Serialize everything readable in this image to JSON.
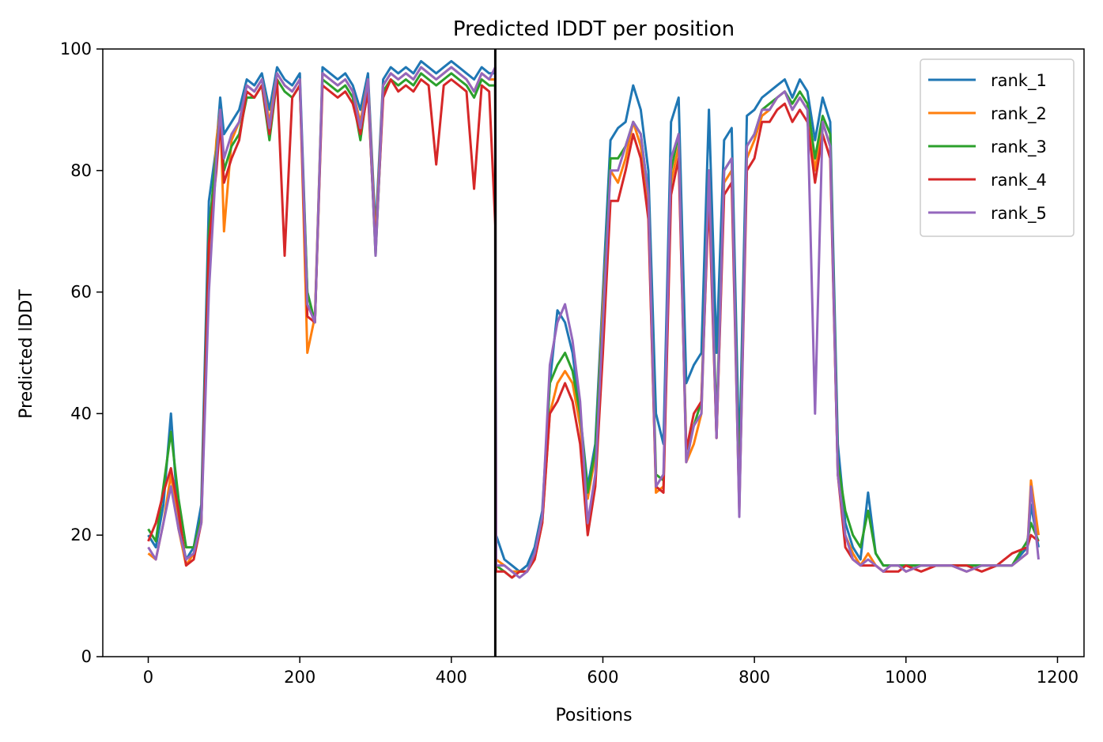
{
  "chart_data": {
    "type": "line",
    "title": "Predicted lDDT per position",
    "xlabel": "Positions",
    "ylabel": "Predicted lDDT",
    "xlim": [
      -60,
      1235
    ],
    "ylim": [
      0,
      100
    ],
    "xticks": [
      0,
      200,
      400,
      600,
      800,
      1000,
      1200
    ],
    "yticks": [
      0,
      20,
      40,
      60,
      80,
      100
    ],
    "grid": false,
    "legend_position": "top-right",
    "chain_break": 458,
    "chain_break_color": "#000000",
    "series": [
      {
        "name": "rank_1",
        "color": "#1f77b4",
        "x": [
          0,
          10,
          20,
          30,
          40,
          50,
          60,
          70,
          80,
          90,
          95,
          100,
          110,
          120,
          130,
          140,
          150,
          160,
          170,
          180,
          190,
          200,
          210,
          220,
          230,
          240,
          250,
          260,
          270,
          280,
          290,
          300,
          310,
          320,
          330,
          340,
          350,
          360,
          370,
          380,
          390,
          400,
          410,
          420,
          430,
          440,
          450,
          458,
          459,
          470,
          480,
          490,
          500,
          510,
          520,
          530,
          540,
          550,
          560,
          570,
          580,
          590,
          600,
          610,
          620,
          630,
          640,
          650,
          660,
          670,
          680,
          690,
          700,
          710,
          720,
          730,
          740,
          750,
          760,
          770,
          780,
          790,
          800,
          810,
          820,
          830,
          840,
          850,
          860,
          870,
          880,
          890,
          900,
          910,
          920,
          930,
          940,
          950,
          960,
          970,
          980,
          990,
          1000,
          1020,
          1040,
          1060,
          1080,
          1100,
          1120,
          1140,
          1160,
          1165,
          1175
        ],
        "y": [
          20,
          18,
          25,
          40,
          22,
          16,
          18,
          25,
          75,
          84,
          92,
          86,
          88,
          90,
          95,
          94,
          96,
          90,
          97,
          95,
          94,
          96,
          60,
          55,
          97,
          96,
          95,
          96,
          94,
          90,
          96,
          70,
          95,
          97,
          96,
          97,
          96,
          98,
          97,
          96,
          97,
          98,
          97,
          96,
          95,
          97,
          96,
          96,
          20,
          16,
          15,
          14,
          15,
          18,
          24,
          45,
          57,
          55,
          50,
          40,
          28,
          35,
          60,
          85,
          87,
          88,
          94,
          90,
          80,
          40,
          35,
          88,
          92,
          45,
          48,
          50,
          90,
          50,
          85,
          87,
          32,
          89,
          90,
          92,
          93,
          94,
          95,
          92,
          95,
          93,
          85,
          92,
          88,
          35,
          22,
          18,
          16,
          27,
          17,
          15,
          15,
          15,
          15,
          15,
          15,
          15,
          15,
          15,
          15,
          15,
          18,
          25,
          18
        ]
      },
      {
        "name": "rank_2",
        "color": "#ff7f0e",
        "x": [
          0,
          10,
          20,
          30,
          40,
          50,
          60,
          70,
          80,
          90,
          95,
          100,
          110,
          120,
          130,
          140,
          150,
          160,
          170,
          180,
          190,
          200,
          210,
          220,
          230,
          240,
          250,
          260,
          270,
          280,
          290,
          300,
          310,
          320,
          330,
          340,
          350,
          360,
          370,
          380,
          390,
          400,
          410,
          420,
          430,
          440,
          450,
          458,
          459,
          470,
          480,
          490,
          500,
          510,
          520,
          530,
          540,
          550,
          560,
          570,
          580,
          590,
          600,
          610,
          620,
          630,
          640,
          650,
          660,
          670,
          680,
          690,
          700,
          710,
          720,
          730,
          740,
          750,
          760,
          770,
          780,
          790,
          800,
          810,
          820,
          830,
          840,
          850,
          860,
          870,
          880,
          890,
          900,
          910,
          920,
          930,
          940,
          950,
          960,
          970,
          980,
          990,
          1000,
          1020,
          1040,
          1060,
          1080,
          1100,
          1120,
          1140,
          1160,
          1165,
          1175
        ],
        "y": [
          17,
          16,
          22,
          30,
          21,
          15,
          17,
          22,
          65,
          85,
          90,
          70,
          85,
          88,
          94,
          93,
          95,
          88,
          96,
          94,
          93,
          95,
          50,
          56,
          96,
          95,
          94,
          95,
          93,
          88,
          95,
          68,
          94,
          96,
          95,
          96,
          95,
          97,
          96,
          95,
          96,
          97,
          96,
          95,
          93,
          96,
          95,
          95,
          16,
          15,
          14,
          14,
          14,
          16,
          22,
          40,
          45,
          47,
          45,
          38,
          26,
          33,
          58,
          80,
          78,
          82,
          88,
          84,
          74,
          27,
          28,
          78,
          84,
          32,
          35,
          40,
          78,
          36,
          78,
          80,
          26,
          82,
          85,
          89,
          90,
          92,
          93,
          90,
          92,
          90,
          80,
          88,
          84,
          30,
          20,
          17,
          15,
          17,
          15,
          14,
          15,
          15,
          14,
          15,
          15,
          15,
          14,
          15,
          15,
          15,
          17,
          29,
          20
        ]
      },
      {
        "name": "rank_3",
        "color": "#2ca02c",
        "x": [
          0,
          10,
          20,
          30,
          40,
          50,
          60,
          70,
          80,
          90,
          95,
          100,
          110,
          120,
          130,
          140,
          150,
          160,
          170,
          180,
          190,
          200,
          210,
          220,
          230,
          240,
          250,
          260,
          270,
          280,
          290,
          300,
          310,
          320,
          330,
          340,
          350,
          360,
          370,
          380,
          390,
          400,
          410,
          420,
          430,
          440,
          450,
          458,
          459,
          470,
          480,
          490,
          500,
          510,
          520,
          530,
          540,
          550,
          560,
          570,
          580,
          590,
          600,
          610,
          620,
          630,
          640,
          650,
          660,
          670,
          680,
          690,
          700,
          710,
          720,
          730,
          740,
          750,
          760,
          770,
          780,
          790,
          800,
          810,
          820,
          830,
          840,
          850,
          860,
          870,
          880,
          890,
          900,
          910,
          920,
          930,
          940,
          950,
          960,
          970,
          980,
          990,
          1000,
          1020,
          1040,
          1060,
          1080,
          1100,
          1120,
          1140,
          1160,
          1165,
          1175
        ],
        "y": [
          21,
          19,
          28,
          37,
          26,
          18,
          18,
          23,
          70,
          83,
          90,
          80,
          84,
          86,
          92,
          92,
          94,
          85,
          95,
          93,
          92,
          94,
          60,
          55,
          95,
          94,
          93,
          94,
          92,
          85,
          94,
          66,
          93,
          95,
          94,
          95,
          94,
          96,
          95,
          94,
          95,
          96,
          95,
          94,
          92,
          95,
          94,
          94,
          15,
          14,
          13,
          14,
          14,
          17,
          23,
          45,
          48,
          50,
          47,
          40,
          27,
          34,
          56,
          82,
          82,
          84,
          88,
          86,
          76,
          30,
          29,
          80,
          86,
          34,
          38,
          42,
          80,
          38,
          80,
          82,
          27,
          84,
          86,
          90,
          91,
          92,
          93,
          91,
          93,
          91,
          82,
          89,
          86,
          32,
          24,
          20,
          18,
          24,
          17,
          15,
          15,
          15,
          15,
          15,
          15,
          15,
          15,
          15,
          15,
          15,
          19,
          22,
          19
        ]
      },
      {
        "name": "rank_4",
        "color": "#d62728",
        "x": [
          0,
          10,
          20,
          30,
          40,
          50,
          60,
          70,
          80,
          90,
          95,
          100,
          110,
          120,
          130,
          140,
          150,
          160,
          170,
          180,
          190,
          200,
          210,
          220,
          230,
          240,
          250,
          260,
          270,
          280,
          290,
          300,
          310,
          320,
          330,
          340,
          350,
          360,
          370,
          380,
          390,
          400,
          410,
          420,
          430,
          440,
          450,
          458,
          459,
          470,
          480,
          490,
          500,
          510,
          520,
          530,
          540,
          550,
          560,
          570,
          580,
          590,
          600,
          610,
          620,
          630,
          640,
          650,
          660,
          670,
          680,
          690,
          700,
          710,
          720,
          730,
          740,
          750,
          760,
          770,
          780,
          790,
          800,
          810,
          820,
          830,
          840,
          850,
          860,
          870,
          880,
          890,
          900,
          910,
          920,
          930,
          940,
          950,
          960,
          970,
          980,
          990,
          1000,
          1020,
          1040,
          1060,
          1080,
          1100,
          1120,
          1140,
          1160,
          1165,
          1175
        ],
        "y": [
          19,
          22,
          27,
          31,
          24,
          15,
          16,
          22,
          68,
          80,
          88,
          78,
          82,
          85,
          93,
          92,
          94,
          86,
          95,
          66,
          92,
          94,
          56,
          55,
          94,
          93,
          92,
          93,
          91,
          86,
          93,
          67,
          92,
          95,
          93,
          94,
          93,
          95,
          94,
          81,
          94,
          95,
          94,
          93,
          77,
          94,
          93,
          71,
          14,
          14,
          13,
          14,
          14,
          16,
          22,
          40,
          42,
          45,
          42,
          35,
          20,
          28,
          50,
          75,
          75,
          80,
          86,
          82,
          72,
          28,
          27,
          76,
          82,
          34,
          40,
          42,
          76,
          36,
          76,
          78,
          24,
          80,
          82,
          88,
          88,
          90,
          91,
          88,
          90,
          88,
          78,
          86,
          82,
          30,
          18,
          16,
          15,
          15,
          15,
          14,
          14,
          14,
          15,
          14,
          15,
          15,
          15,
          14,
          15,
          17,
          18,
          20,
          19
        ]
      },
      {
        "name": "rank_5",
        "color": "#9467bd",
        "x": [
          0,
          10,
          20,
          30,
          40,
          50,
          60,
          70,
          80,
          90,
          95,
          100,
          110,
          120,
          130,
          140,
          150,
          160,
          170,
          180,
          190,
          200,
          210,
          220,
          230,
          240,
          250,
          260,
          270,
          280,
          290,
          300,
          310,
          320,
          330,
          340,
          350,
          360,
          370,
          380,
          390,
          400,
          410,
          420,
          430,
          440,
          450,
          458,
          459,
          470,
          480,
          490,
          500,
          510,
          520,
          530,
          540,
          550,
          560,
          570,
          580,
          590,
          600,
          610,
          620,
          630,
          640,
          650,
          660,
          670,
          680,
          690,
          700,
          710,
          720,
          730,
          740,
          750,
          760,
          770,
          780,
          790,
          800,
          810,
          820,
          830,
          840,
          850,
          860,
          870,
          880,
          890,
          900,
          910,
          920,
          930,
          940,
          950,
          960,
          970,
          980,
          990,
          1000,
          1020,
          1040,
          1060,
          1080,
          1100,
          1120,
          1140,
          1160,
          1165,
          1175
        ],
        "y": [
          18,
          16,
          22,
          28,
          21,
          16,
          17,
          22,
          60,
          82,
          90,
          82,
          86,
          88,
          94,
          93,
          95,
          87,
          96,
          94,
          93,
          95,
          58,
          55,
          96,
          95,
          94,
          95,
          93,
          87,
          95,
          66,
          94,
          96,
          95,
          96,
          95,
          97,
          96,
          95,
          96,
          97,
          96,
          95,
          93,
          96,
          95,
          97,
          15,
          15,
          14,
          13,
          14,
          17,
          23,
          48,
          55,
          58,
          52,
          42,
          22,
          30,
          55,
          80,
          80,
          84,
          88,
          86,
          76,
          28,
          30,
          82,
          86,
          32,
          38,
          40,
          80,
          36,
          80,
          82,
          23,
          84,
          86,
          90,
          90,
          92,
          93,
          90,
          92,
          90,
          40,
          88,
          84,
          30,
          20,
          16,
          15,
          16,
          15,
          14,
          15,
          15,
          14,
          15,
          15,
          15,
          14,
          15,
          15,
          15,
          17,
          28,
          16
        ]
      }
    ]
  }
}
